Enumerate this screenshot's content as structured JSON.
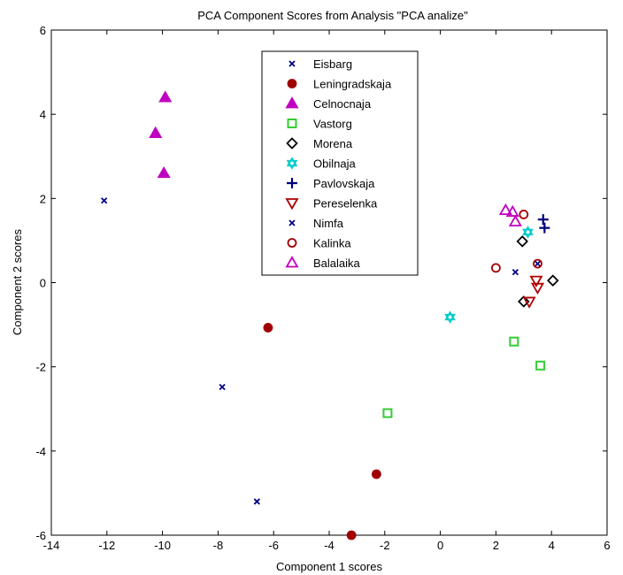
{
  "chart_data": {
    "type": "scatter",
    "title": "PCA Component Scores from Analysis \"PCA analize\"",
    "xlabel": "Component 1 scores",
    "ylabel": "Component 2 scores",
    "xlim": [
      -14,
      6
    ],
    "ylim": [
      -6,
      6
    ],
    "xticks": [
      -14,
      -12,
      -10,
      -8,
      -6,
      -4,
      -2,
      0,
      2,
      4,
      6
    ],
    "yticks": [
      -6,
      -4,
      -2,
      0,
      2,
      4,
      6
    ],
    "grid": false,
    "legend_position": "top-center",
    "series": [
      {
        "name": "Eisbarg",
        "marker": "x",
        "color": "#00008b",
        "filled": false,
        "points": [
          [
            -12.1,
            1.95
          ],
          [
            -7.85,
            -2.48
          ],
          [
            -6.6,
            -5.2
          ]
        ]
      },
      {
        "name": "Leningradskaja",
        "marker": "circle",
        "color": "#a00000",
        "filled": true,
        "points": [
          [
            -6.2,
            -1.07
          ],
          [
            -2.3,
            -4.55
          ],
          [
            -3.2,
            -6.0
          ]
        ]
      },
      {
        "name": "Celnocnaja",
        "marker": "triangle-up",
        "color": "#c000c0",
        "filled": true,
        "points": [
          [
            -9.9,
            4.4
          ],
          [
            -10.25,
            3.55
          ],
          [
            -9.95,
            2.6
          ]
        ]
      },
      {
        "name": "Vastorg",
        "marker": "square",
        "color": "#33cc33",
        "filled": false,
        "points": [
          [
            -1.9,
            -3.1
          ],
          [
            2.65,
            -1.4
          ],
          [
            3.6,
            -1.97
          ]
        ]
      },
      {
        "name": "Morena",
        "marker": "diamond",
        "color": "#000000",
        "filled": false,
        "points": [
          [
            2.95,
            0.98
          ],
          [
            4.05,
            0.05
          ],
          [
            3.0,
            -0.45
          ]
        ]
      },
      {
        "name": "Obilnaja",
        "marker": "hexagram",
        "color": "#00cccc",
        "filled": false,
        "points": [
          [
            0.35,
            -0.82
          ],
          [
            3.15,
            1.2
          ]
        ]
      },
      {
        "name": "Pavlovskaja",
        "marker": "plus",
        "color": "#000080",
        "filled": false,
        "points": [
          [
            3.7,
            1.5
          ],
          [
            3.75,
            1.3
          ]
        ]
      },
      {
        "name": "Pereselenka",
        "marker": "triangle-down",
        "color": "#b00000",
        "filled": false,
        "points": [
          [
            3.45,
            0.05
          ],
          [
            3.5,
            -0.12
          ],
          [
            3.2,
            -0.45
          ]
        ]
      },
      {
        "name": "Nimfa",
        "marker": "x",
        "color": "#00008b",
        "filled": false,
        "points": [
          [
            2.7,
            0.25
          ],
          [
            3.5,
            0.45
          ]
        ]
      },
      {
        "name": "Kalinka",
        "marker": "circle",
        "color": "#a00000",
        "filled": false,
        "points": [
          [
            2.0,
            0.35
          ],
          [
            3.0,
            1.62
          ],
          [
            3.5,
            0.45
          ]
        ]
      },
      {
        "name": "Balalaika",
        "marker": "triangle-up",
        "color": "#c000c0",
        "filled": false,
        "points": [
          [
            2.35,
            1.72
          ],
          [
            2.6,
            1.68
          ],
          [
            2.7,
            1.45
          ]
        ]
      }
    ]
  }
}
